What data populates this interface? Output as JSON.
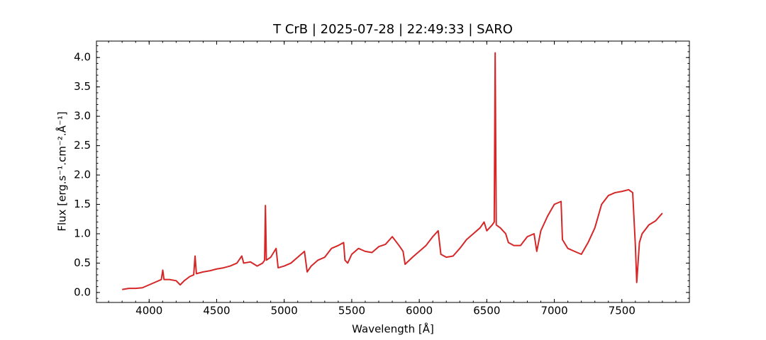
{
  "chart_data": {
    "type": "line",
    "title": "T CrB | 2025-07-28 | 22:49:33 | SARO",
    "x_label": "Wavelength [Å]",
    "y_label": "Flux [erg.s⁻¹.cm⁻².Å⁻¹]",
    "xlim": [
      3610,
      8000
    ],
    "ylim": [
      -0.17,
      4.28
    ],
    "xticks": [
      4000,
      4500,
      5000,
      5500,
      6000,
      6500,
      7000,
      7500
    ],
    "yticks": [
      {
        "value": 0,
        "label": "0.0"
      },
      0.5,
      {
        "value": 1,
        "label": "1.0"
      },
      1.5,
      {
        "value": 2,
        "label": "2.0"
      },
      2.5,
      {
        "value": 3,
        "label": "3.0"
      },
      3.5,
      {
        "value": 4,
        "label": "4.0"
      }
    ],
    "x_minor_step": 100,
    "y_minor_step": 0.1,
    "grid": false,
    "series": [
      {
        "name": "T CrB",
        "color": "#d62728",
        "x": [
          3800,
          3850,
          3900,
          3950,
          4000,
          4050,
          4090,
          4101,
          4110,
          4150,
          4200,
          4230,
          4260,
          4300,
          4330,
          4340,
          4350,
          4400,
          4450,
          4500,
          4550,
          4600,
          4650,
          4686,
          4700,
          4750,
          4800,
          4840,
          4855,
          4861,
          4868,
          4900,
          4940,
          4955,
          5000,
          5050,
          5100,
          5150,
          5170,
          5200,
          5250,
          5300,
          5350,
          5400,
          5440,
          5450,
          5470,
          5500,
          5550,
          5600,
          5650,
          5700,
          5750,
          5800,
          5850,
          5880,
          5895,
          5950,
          6000,
          6050,
          6100,
          6140,
          6160,
          6200,
          6250,
          6300,
          6350,
          6400,
          6450,
          6480,
          6500,
          6540,
          6555,
          6562,
          6570,
          6600,
          6640,
          6660,
          6700,
          6750,
          6800,
          6850,
          6870,
          6900,
          6950,
          7000,
          7050,
          7060,
          7100,
          7150,
          7200,
          7250,
          7300,
          7350,
          7400,
          7450,
          7500,
          7550,
          7580,
          7600,
          7610,
          7630,
          7650,
          7700,
          7750,
          7800
        ],
        "values": [
          0.05,
          0.07,
          0.07,
          0.08,
          0.13,
          0.18,
          0.22,
          0.38,
          0.22,
          0.22,
          0.2,
          0.13,
          0.2,
          0.27,
          0.3,
          0.62,
          0.32,
          0.35,
          0.37,
          0.4,
          0.42,
          0.45,
          0.5,
          0.62,
          0.5,
          0.52,
          0.45,
          0.5,
          0.55,
          1.48,
          0.55,
          0.6,
          0.75,
          0.42,
          0.45,
          0.5,
          0.6,
          0.7,
          0.35,
          0.45,
          0.55,
          0.6,
          0.75,
          0.8,
          0.85,
          0.55,
          0.5,
          0.65,
          0.75,
          0.7,
          0.68,
          0.78,
          0.82,
          0.95,
          0.8,
          0.7,
          0.48,
          0.6,
          0.7,
          0.8,
          0.95,
          1.05,
          0.65,
          0.6,
          0.62,
          0.75,
          0.9,
          1.0,
          1.1,
          1.2,
          1.05,
          1.15,
          1.2,
          4.08,
          1.15,
          1.1,
          1.0,
          0.85,
          0.8,
          0.8,
          0.95,
          1.0,
          0.7,
          1.05,
          1.3,
          1.5,
          1.55,
          0.9,
          0.75,
          0.7,
          0.65,
          0.85,
          1.1,
          1.5,
          1.65,
          1.7,
          1.72,
          1.75,
          1.7,
          0.8,
          0.17,
          0.85,
          1.0,
          1.15,
          1.22,
          1.35
        ]
      }
    ]
  }
}
